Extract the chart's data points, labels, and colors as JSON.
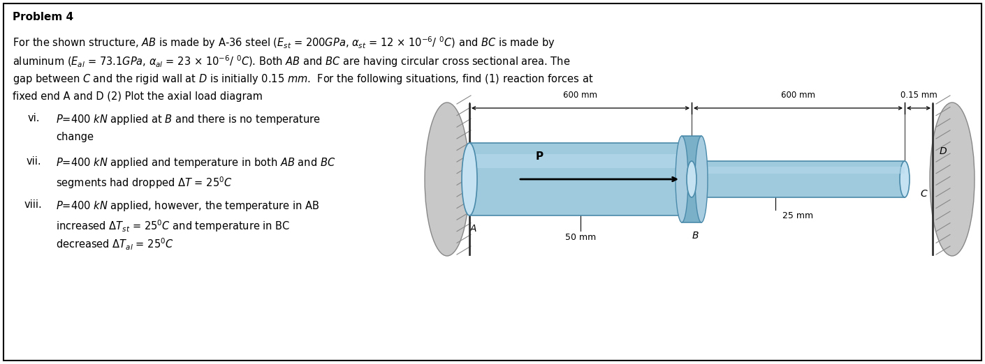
{
  "title": "Problem 4",
  "bg_color": "#ffffff",
  "border_color": "#000000",
  "fig_width": 14.1,
  "fig_height": 5.22,
  "text_line1": "For the shown structure, $\\mathit{AB}$ is made by A-36 steel ($E_{st}$ = 200$GPa$, $\\alpha_{st}$ = 12 × 10$^{-6}$/ $^{0}C$) and $\\mathit{BC}$ is made by",
  "text_line2": "aluminum ($E_{al}$ = 73.1$GPa$, $\\alpha_{al}$ = 23 × 10$^{-6}$/ $^{0}C$). Both $\\mathit{AB}$ and $\\mathit{BC}$ are having circular cross sectional area. The",
  "text_line3": "gap between $\\mathit{C}$ and the rigid wall at $\\mathit{D}$ is initially 0.15 $\\mathit{mm}$.  For the following situations, find (1) reaction forces at",
  "text_line4": "fixed end A and D (2) Plot the axial load diagram",
  "vi_roman": "vi.",
  "vi_line1": "$P$=400 $kN$ applied at $\\mathit{B}$ and there is no temperature",
  "vi_line2": "change",
  "vii_roman": "vii.",
  "vii_line1": "$P$=400 $kN$ applied and temperature in both $\\mathit{AB}$ and $\\mathit{BC}$",
  "vii_line2": "segments had dropped $\\Delta T$ = 25$^{0}C$",
  "viii_roman": "viii.",
  "viii_line1": "$P$=400 $kN$ applied, however, the temperature in AB",
  "viii_line2": "increased $\\Delta T_{st}$ = 25$^{0}C$ and temperature in BC",
  "viii_line3": "decreased $\\Delta T_{al}$ = 25$^{0}C$",
  "dim_600_left": "600 mm",
  "dim_600_right": "600 mm",
  "dim_gap": "0.15 mm",
  "label_A": "A",
  "label_B": "B",
  "label_C": "C",
  "label_D": "D",
  "label_50mm": "50 mm",
  "label_25mm": "25 mm",
  "label_P": "P",
  "steel_fill": "#9fc9dc",
  "steel_top": "#b8dcee",
  "steel_edge": "#4a8aaa",
  "alum_fill": "#9fc9dc",
  "alum_top": "#b8dcee",
  "alum_edge": "#4a8aaa",
  "collar_fill": "#7ab0c8",
  "collar_edge": "#4a8aaa",
  "wall_fill": "#c8c8c8",
  "wall_edge": "#888888",
  "hatch_color": "#888888"
}
